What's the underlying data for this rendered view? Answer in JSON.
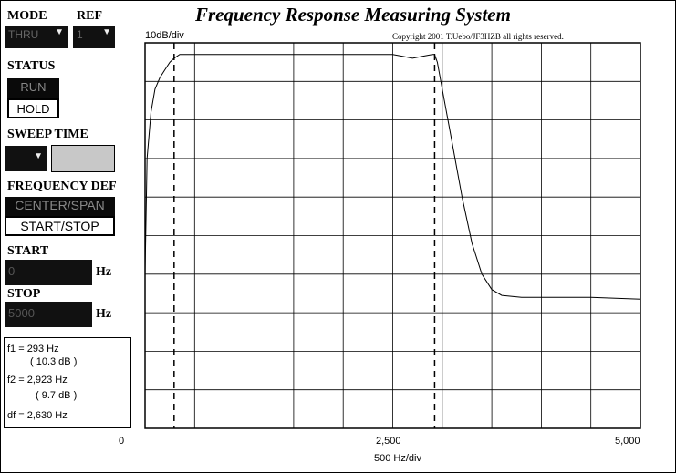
{
  "window": {
    "title": "Frequency Response Measuring System",
    "copyright": "Copyright 2001 T.Uebo/JF3HZB all rights reserved."
  },
  "mode": {
    "label": "MODE",
    "value": "THRU"
  },
  "ref": {
    "label": "REF",
    "value": "1"
  },
  "status": {
    "label": "STATUS",
    "options": [
      "RUN",
      "HOLD"
    ],
    "selected": "RUN"
  },
  "sweep_time": {
    "label": "SWEEP TIME",
    "value": ""
  },
  "frequency_def": {
    "label": "FREQUENCY DEF",
    "options": [
      "CENTER/SPAN",
      "START/STOP"
    ],
    "selected": "CENTER/SPAN"
  },
  "start": {
    "label": "START",
    "value": "0",
    "unit": "Hz"
  },
  "stop": {
    "label": "STOP",
    "value": "5000",
    "unit": "Hz"
  },
  "readout": {
    "f1": "f1 = 293 Hz",
    "f1_db": "( 10.3 dB )",
    "f2": "f2 = 2,923 Hz",
    "f2_db": "( 9.7 dB )",
    "df": "df = 2,630 Hz"
  },
  "chart_data": {
    "type": "line",
    "y_scale_label": "10dB/div",
    "xlabel": "500 Hz/div",
    "x_tick_labels": [
      "0",
      "2,500",
      "5,000"
    ],
    "xlim": [
      0,
      5000
    ],
    "ylim": [
      -100,
      0
    ],
    "grid": true,
    "markers": [
      293,
      2923
    ],
    "series": [
      {
        "x": [
          0,
          20,
          60,
          100,
          150,
          200,
          250,
          293,
          350,
          500,
          1000,
          1500,
          2000,
          2500,
          2600,
          2700,
          2800,
          2900,
          2923,
          2950,
          3000,
          3100,
          3200,
          3300,
          3400,
          3500,
          3600,
          3800,
          4000,
          4500,
          5000
        ],
        "y": [
          -60,
          -30,
          -18,
          -12,
          -9,
          -7,
          -5,
          -4,
          -3,
          -3,
          -3,
          -3,
          -3,
          -3,
          -3.5,
          -4,
          -3.5,
          -3,
          -3,
          -5,
          -12,
          -26,
          -40,
          -52,
          -60,
          -64,
          -65.5,
          -66,
          -66,
          -66,
          -66.5
        ]
      }
    ]
  }
}
